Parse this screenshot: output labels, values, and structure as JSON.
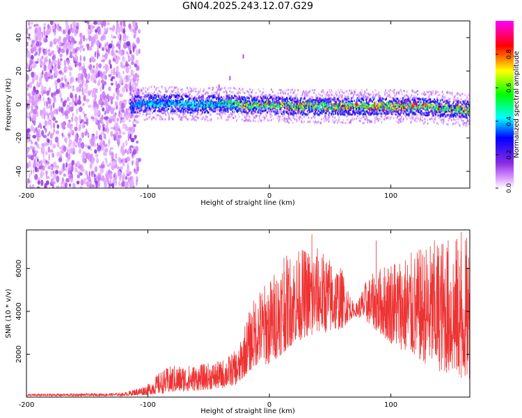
{
  "title": "GN04.2025.243.12.07.G29",
  "colors": {
    "series": "#ee3333",
    "spectrum_scatter": "#8a2be2",
    "colormap": [
      "#ffffff",
      "#dd99ff",
      "#8a2be2",
      "#0000ff",
      "#00ffff",
      "#00ff00",
      "#ffff00",
      "#ff0000",
      "#ff00ff"
    ]
  },
  "chart_data": [
    {
      "type": "heatmap",
      "name": "spectrogram",
      "xlabel": "Height of straight line (km)",
      "ylabel": "Frequency (Hz)",
      "xlim": [
        -200,
        165
      ],
      "ylim": [
        -50,
        50
      ],
      "xticks": [
        -200,
        -100,
        0,
        100
      ],
      "yticks": [
        -40,
        -20,
        0,
        20,
        40
      ],
      "description_ridge": {
        "x": [
          -115,
          -100,
          -80,
          -60,
          -40,
          -20,
          0,
          20,
          40,
          60,
          80,
          100,
          120,
          140,
          165
        ],
        "center_hz": [
          0,
          1,
          1,
          0,
          1,
          0,
          0,
          -1,
          -1,
          -1,
          -1,
          -1,
          -1,
          -2,
          -3
        ],
        "peak_amplitude": [
          0.35,
          0.45,
          0.45,
          0.5,
          0.55,
          0.85,
          0.9,
          0.9,
          0.92,
          0.95,
          0.92,
          0.9,
          0.9,
          0.88,
          0.85
        ]
      },
      "noise_region_x": [
        -200,
        -110
      ],
      "colorbar": {
        "label": "Normalized spectral amplitude",
        "range": [
          0.0,
          1.0
        ],
        "ticks": [
          0.0,
          0.2,
          0.4,
          0.6,
          0.8
        ]
      }
    },
    {
      "type": "line",
      "name": "snr",
      "xlabel": "Height of straight line (km)",
      "ylabel": "SNR (10 * v/v)",
      "xlim": [
        -200,
        165
      ],
      "ylim": [
        0,
        7800
      ],
      "xticks": [
        -200,
        -100,
        0,
        100
      ],
      "yticks": [
        2000,
        4000,
        6000
      ],
      "series": [
        {
          "name": "SNR",
          "x": [
            -200,
            -150,
            -120,
            -100,
            -90,
            -80,
            -60,
            -40,
            -25,
            -20,
            -10,
            0,
            10,
            20,
            30,
            40,
            50,
            60,
            70,
            80,
            100,
            120,
            140,
            165
          ],
          "lower": [
            50,
            50,
            60,
            100,
            150,
            200,
            300,
            400,
            600,
            1000,
            1500,
            1500,
            2000,
            2500,
            2800,
            3000,
            3000,
            3200,
            3800,
            3500,
            2500,
            1800,
            1200,
            800
          ],
          "upper": [
            150,
            170,
            200,
            600,
            1200,
            1500,
            1500,
            1700,
            2300,
            3500,
            5000,
            5500,
            6500,
            6800,
            7000,
            7000,
            6500,
            6000,
            4200,
            5500,
            6500,
            6800,
            7500,
            7500
          ],
          "peaks": [
            {
              "x": 35,
              "y": 7600
            },
            {
              "x": 88,
              "y": 7300
            },
            {
              "x": 158,
              "y": 7700
            },
            {
              "x": 12,
              "y": 6500
            }
          ]
        }
      ]
    }
  ]
}
